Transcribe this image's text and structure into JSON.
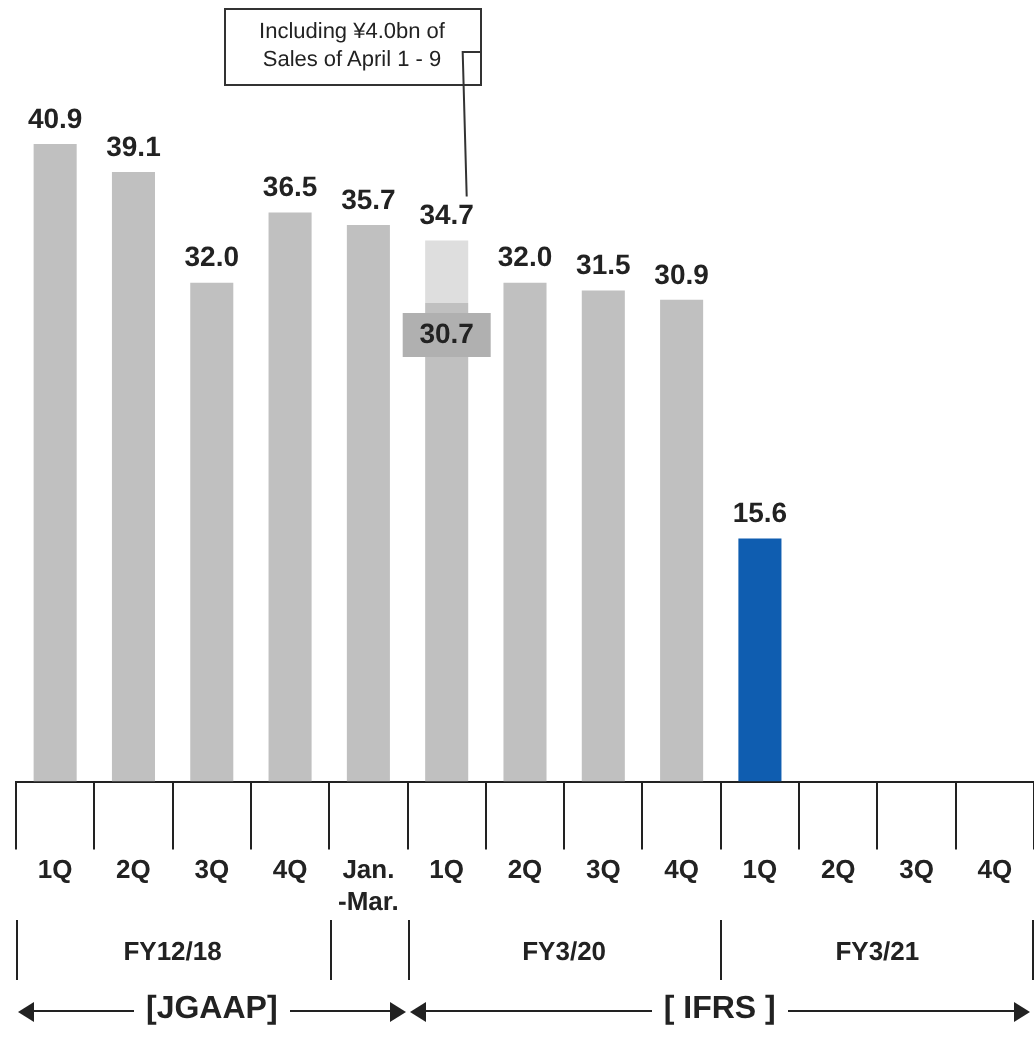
{
  "chart_data": {
    "type": "bar",
    "stacked": true,
    "categories": [
      "1Q",
      "2Q",
      "3Q",
      "4Q",
      "Jan.-Mar.",
      "1Q",
      "2Q",
      "3Q",
      "4Q",
      "1Q",
      "2Q",
      "3Q",
      "4Q"
    ],
    "series": [
      {
        "colors": [
          "#c0c0c0",
          "#c0c0c0",
          "#c0c0c0",
          "#c0c0c0",
          "#c0c0c0",
          "#c0c0c0",
          "#c0c0c0",
          "#c0c0c0",
          "#c0c0c0",
          "#0f5db0",
          "#c0c0c0",
          "#c0c0c0",
          "#c0c0c0"
        ],
        "values": [
          40.9,
          39.1,
          32.0,
          36.5,
          35.7,
          30.7,
          32.0,
          31.5,
          30.9,
          15.6,
          null,
          null,
          null
        ],
        "value_labels": [
          "40.9",
          "39.1",
          "32.0",
          "36.5",
          "35.7",
          "30.7",
          "32.0",
          "31.5",
          "30.9",
          "15.6",
          null,
          null,
          null
        ]
      },
      {
        "color": "#dedede",
        "values": [
          null,
          null,
          null,
          null,
          null,
          4.0,
          null,
          null,
          null,
          null,
          null,
          null,
          null
        ]
      }
    ],
    "totals": [
      null,
      null,
      null,
      null,
      null,
      "34.7",
      null,
      null,
      null,
      null,
      null,
      null,
      null
    ],
    "annotations": [
      "Including ¥4.0bn of Sales of April 1 - 9",
      "FY12/18",
      "FY3/20",
      "FY3/21",
      "[JGAAP]",
      "[ IFRS ]"
    ],
    "grid": false,
    "legend": false
  }
}
